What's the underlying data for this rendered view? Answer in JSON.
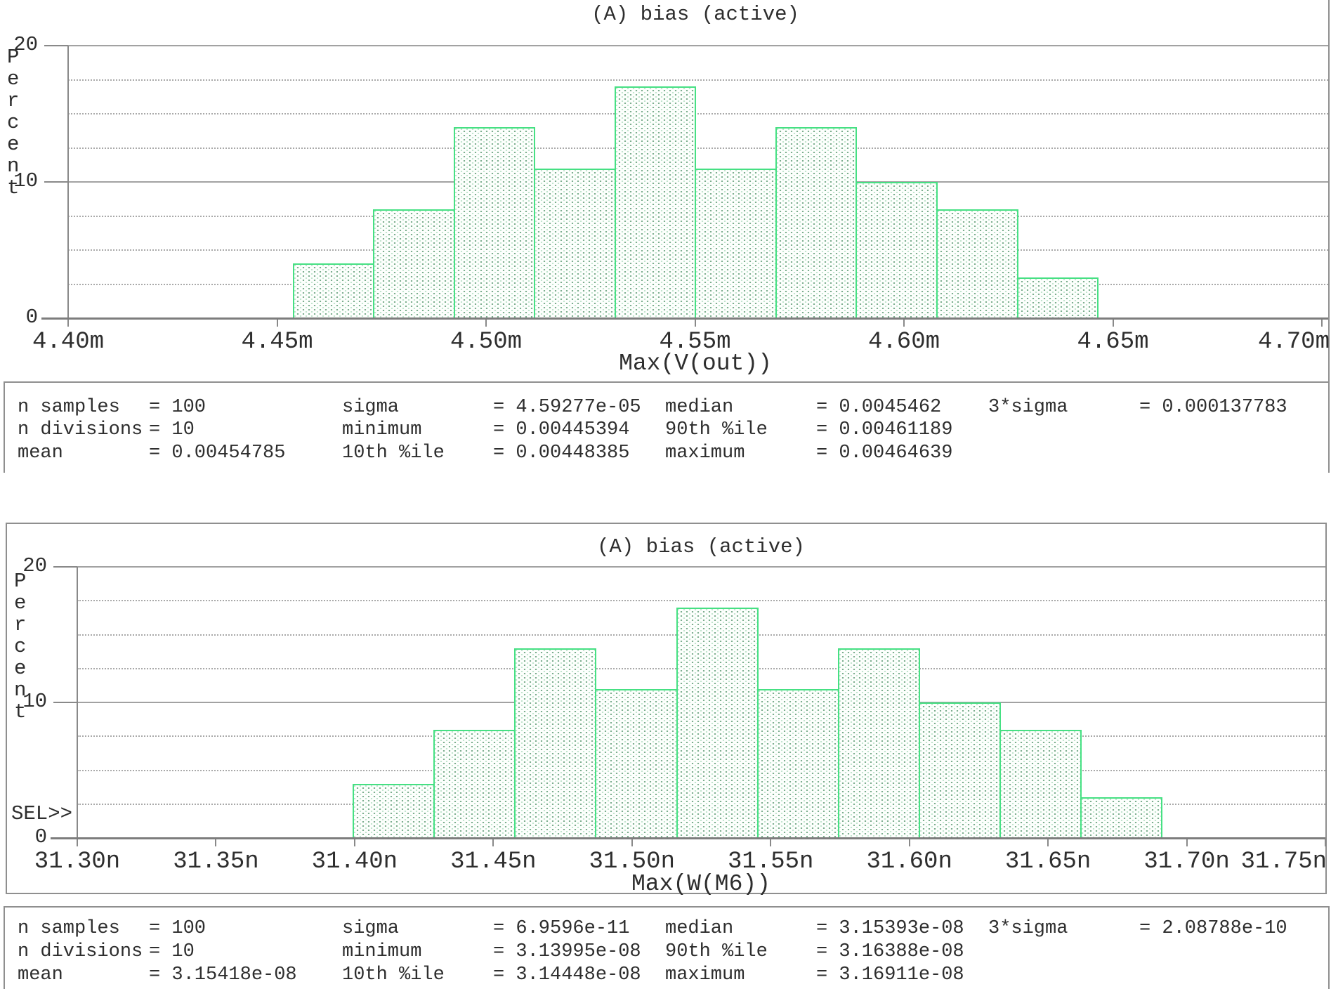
{
  "chart_data": [
    {
      "type": "bar",
      "title": "(A) bias (active)",
      "ylabel": "Percent",
      "xlabel": "Max(V(out))",
      "y_ticks": [
        0,
        10,
        20
      ],
      "ylim": [
        0,
        20
      ],
      "grid_step": 2.5,
      "x_tick_labels": [
        "4.40m",
        "4.45m",
        "4.50m",
        "4.55m",
        "4.60m",
        "4.65m",
        "4.70m"
      ],
      "x_tick_values": [
        4.4,
        4.45,
        4.5,
        4.55,
        4.6,
        4.65,
        4.7
      ],
      "hist_min": 4.45394,
      "hist_max": 4.64639,
      "n_bins": 10,
      "counts": [
        4,
        8,
        14,
        11,
        17,
        11,
        14,
        10,
        8,
        3
      ],
      "stats_rows": [
        [
          {
            "label": "n samples",
            "value": "100"
          },
          {
            "label": "sigma",
            "value": "4.59277e-05"
          },
          {
            "label": "median",
            "value": "0.0045462"
          },
          {
            "label": "3*sigma",
            "value": "0.000137783"
          }
        ],
        [
          {
            "label": "n divisions",
            "value": "10"
          },
          {
            "label": "minimum",
            "value": "0.00445394"
          },
          {
            "label": "90th %ile",
            "value": "0.00461189"
          }
        ],
        [
          {
            "label": "mean",
            "value": "0.00454785"
          },
          {
            "label": "10th %ile",
            "value": "0.00448385"
          },
          {
            "label": "maximum",
            "value": "0.00464639"
          }
        ]
      ]
    },
    {
      "type": "bar",
      "title": "(A) bias (active)",
      "ylabel": "Percent",
      "xlabel": "Max(W(M6))",
      "sel_label": "SEL>>",
      "y_ticks": [
        0,
        10,
        20
      ],
      "ylim": [
        0,
        20
      ],
      "grid_step": 2.5,
      "x_tick_labels": [
        "31.30n",
        "31.35n",
        "31.40n",
        "31.45n",
        "31.50n",
        "31.55n",
        "31.60n",
        "31.65n",
        "31.70n",
        "31.75n"
      ],
      "x_tick_values": [
        31.3,
        31.35,
        31.4,
        31.45,
        31.5,
        31.55,
        31.6,
        31.65,
        31.7,
        31.75
      ],
      "hist_min": 31.3995,
      "hist_max": 31.6911,
      "n_bins": 10,
      "counts": [
        4,
        8,
        14,
        11,
        17,
        11,
        14,
        10,
        8,
        3
      ],
      "stats_rows": [
        [
          {
            "label": "n samples",
            "value": "100"
          },
          {
            "label": "sigma",
            "value": "6.9596e-11"
          },
          {
            "label": "median",
            "value": "3.15393e-08"
          },
          {
            "label": "3*sigma",
            "value": "2.08788e-10"
          }
        ],
        [
          {
            "label": "n divisions",
            "value": "10"
          },
          {
            "label": "minimum",
            "value": "3.13995e-08"
          },
          {
            "label": "90th %ile",
            "value": "3.16388e-08"
          }
        ],
        [
          {
            "label": "mean",
            "value": "3.15418e-08"
          },
          {
            "label": "10th %ile",
            "value": "3.14448e-08"
          },
          {
            "label": "maximum",
            "value": "3.16911e-08"
          }
        ]
      ]
    }
  ],
  "colors": {
    "bar_border": "#46e083",
    "grid": "#a6a6a6",
    "axis": "#7d7d7d",
    "text": "#2e2e2e",
    "background": "#ffffff"
  }
}
